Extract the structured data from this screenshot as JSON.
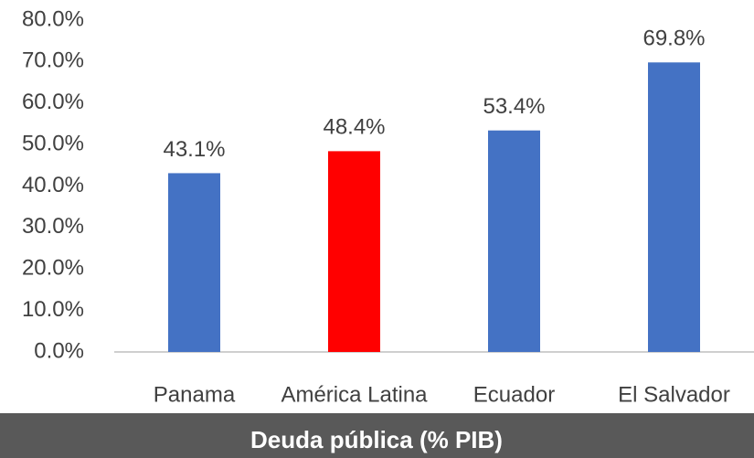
{
  "chart_data": {
    "type": "bar",
    "title": "Deuda pública (% PIB)",
    "categories": [
      "Panama",
      "América Latina",
      "Ecuador",
      "El Salvador"
    ],
    "values": [
      43.1,
      48.4,
      53.4,
      69.8
    ],
    "value_labels": [
      "43.1%",
      "48.4%",
      "53.4%",
      "69.8%"
    ],
    "colors": [
      "#4472c4",
      "#ff0000",
      "#4472c4",
      "#4472c4"
    ],
    "ylim": [
      0,
      80
    ],
    "yticks": [
      {
        "value": 0,
        "label": "0.0%"
      },
      {
        "value": 10,
        "label": "10.0%"
      },
      {
        "value": 20,
        "label": "20.0%"
      },
      {
        "value": 30,
        "label": "30.0%"
      },
      {
        "value": 40,
        "label": "40.0%"
      },
      {
        "value": 50,
        "label": "50.0%"
      },
      {
        "value": 60,
        "label": "60.0%"
      },
      {
        "value": 70,
        "label": "70.0%"
      },
      {
        "value": 80,
        "label": "80.0%"
      }
    ],
    "grid": false
  }
}
